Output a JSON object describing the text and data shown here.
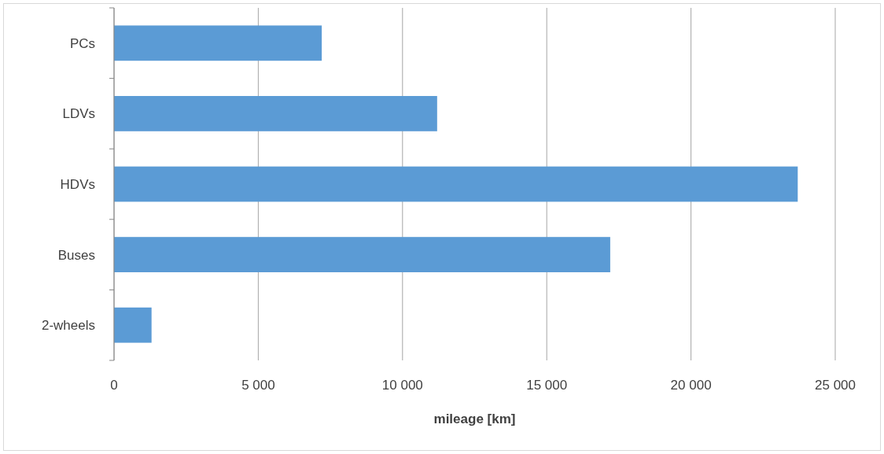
{
  "chart_data": {
    "type": "bar",
    "orientation": "horizontal",
    "categories": [
      "PCs",
      "LDVs",
      "HDVs",
      "Buses",
      "2-wheels"
    ],
    "values": [
      7200,
      11200,
      23700,
      17200,
      1300
    ],
    "color": "#5b9bd5",
    "xlabel": "mileage [km]",
    "xlim": [
      0,
      25000
    ],
    "xticks": [
      0,
      {
        "value": 5000,
        "label": "5 000"
      },
      {
        "value": 10000,
        "label": "10 000"
      },
      {
        "value": 15000,
        "label": "15 000"
      },
      {
        "value": 20000,
        "label": "20 000"
      },
      {
        "value": 25000,
        "label": "25 000"
      }
    ],
    "grid": "x"
  }
}
